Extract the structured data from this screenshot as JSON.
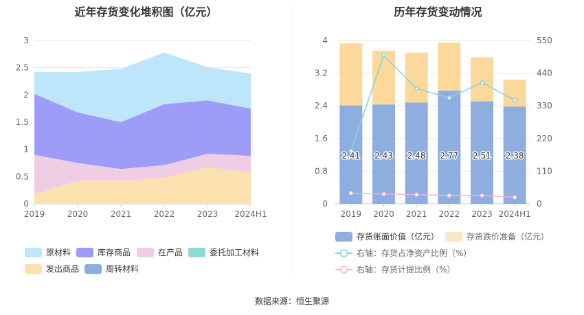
{
  "source": "数据来源：恒生聚源",
  "left_chart": {
    "title": "近年存货变化堆积图（亿元）"
  },
  "right_chart": {
    "title": "历年存货变动情况"
  },
  "colors": {
    "raw_materials": "#bde6fa",
    "finished_goods": "#9d9df7",
    "wip": "#efcde5",
    "consigned": "#8ed8d8",
    "shipped": "#fbe0b0",
    "turnover": "#8eaedf",
    "book_value_bar": "#8eaedf",
    "impairment_bar": "#fcd89a",
    "ratio_line": "#7fd6de",
    "provision_line": "#f0b4d8"
  },
  "chart_data": [
    {
      "type": "area",
      "stacked": true,
      "title": "近年存货变化堆积图（亿元）",
      "categories": [
        "2019",
        "2020",
        "2021",
        "2022",
        "2023",
        "2024H1"
      ],
      "ylim": [
        0,
        3
      ],
      "yticks": [
        "0",
        "0.5",
        "1",
        "1.5",
        "2",
        "2.5",
        "3"
      ],
      "grid": true,
      "legend_position": "bottom",
      "series": [
        {
          "key": "shipped",
          "name": "发出商品",
          "values": [
            0.18,
            0.42,
            0.42,
            0.48,
            0.67,
            0.58
          ]
        },
        {
          "key": "wip",
          "name": "在产品",
          "values": [
            0.72,
            0.33,
            0.22,
            0.23,
            0.25,
            0.3
          ]
        },
        {
          "key": "finished_goods",
          "name": "库存商品",
          "values": [
            1.12,
            0.93,
            0.86,
            1.12,
            0.98,
            0.87
          ]
        },
        {
          "key": "raw_materials",
          "name": "原材料",
          "values": [
            0.4,
            0.74,
            0.98,
            0.95,
            0.61,
            0.64
          ]
        },
        {
          "key": "consigned",
          "name": "委托加工材料",
          "values": [
            0,
            0,
            0,
            0,
            0,
            0
          ]
        },
        {
          "key": "turnover",
          "name": "周转材料",
          "values": [
            0,
            0,
            0,
            0,
            0,
            0
          ]
        }
      ],
      "legend": [
        {
          "key": "raw_materials",
          "label": "原材料"
        },
        {
          "key": "finished_goods",
          "label": "库存商品"
        },
        {
          "key": "wip",
          "label": "在产品"
        },
        {
          "key": "consigned",
          "label": "委托加工材料"
        },
        {
          "key": "shipped",
          "label": "发出商品"
        },
        {
          "key": "turnover",
          "label": "周转材料"
        }
      ]
    },
    {
      "type": "bar",
      "stacked": true,
      "title": "历年存货变动情况",
      "categories": [
        "2019",
        "2020",
        "2021",
        "2022",
        "2023",
        "2024H1"
      ],
      "ylim": [
        0,
        4
      ],
      "yticks": [
        "0",
        "0.8",
        "1.6",
        "2.4",
        "3.2",
        "4"
      ],
      "y2lim": [
        0,
        550
      ],
      "y2ticks": [
        "0",
        "110",
        "220",
        "330",
        "440",
        "550"
      ],
      "legend_position": "bottom",
      "series": [
        {
          "key": "book_value",
          "name": "存货账面价值（亿元）",
          "values": [
            2.41,
            2.43,
            2.48,
            2.77,
            2.51,
            2.38
          ],
          "labels": [
            "2.41",
            "2.43",
            "2.48",
            "2.77",
            "2.51",
            "2.38"
          ]
        },
        {
          "key": "impairment",
          "name": "存货跌价准备（亿元）",
          "values": [
            1.52,
            1.32,
            1.22,
            1.17,
            1.08,
            0.66
          ]
        },
        {
          "key": "ratio",
          "name": "右轴：存货占净资产比例（%）",
          "axis": "right",
          "type": "line",
          "values": [
            178,
            500,
            388,
            357,
            408,
            349
          ]
        },
        {
          "key": "provision",
          "name": "右轴：存货计提比例（%）",
          "axis": "right",
          "type": "line",
          "values": [
            36,
            33,
            31,
            28,
            28,
            22
          ]
        }
      ],
      "legend": [
        {
          "key": "book_value",
          "label": "存货账面价值（亿元）"
        },
        {
          "key": "impairment",
          "label": "存货跌价准备（亿元）"
        },
        {
          "key": "ratio",
          "label": "右轴：存货占净资产比例（%）"
        },
        {
          "key": "provision",
          "label": "右轴：存货计提比例（%）"
        }
      ]
    }
  ]
}
